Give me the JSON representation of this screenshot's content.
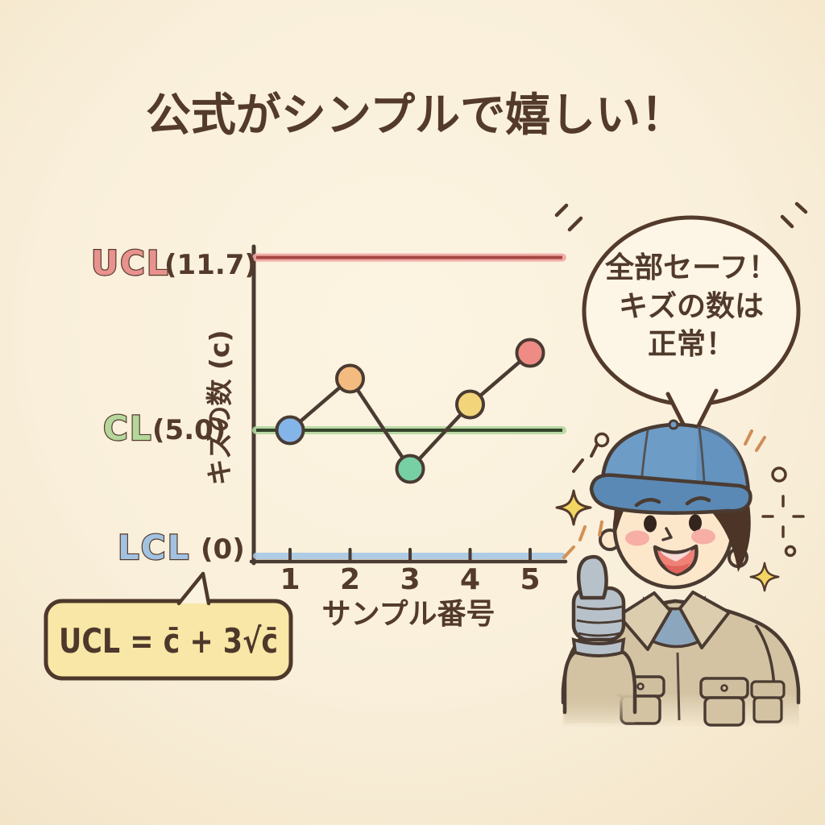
{
  "title": "公式がシンプルで嬉しい！",
  "chart_data": {
    "type": "line",
    "x": [
      1,
      2,
      3,
      4,
      5
    ],
    "x_labels": [
      "1",
      "2",
      "3",
      "4",
      "5"
    ],
    "values": [
      5,
      7,
      3.5,
      6,
      8
    ],
    "xlabel": "サンプル番号",
    "ylabel": "キズの数 (c)",
    "ylim": [
      0,
      13
    ],
    "grid": false,
    "legend": "none",
    "limits": {
      "ucl": {
        "label": "UCL",
        "value_text": "(11.7)",
        "value": 11.7,
        "label_fill": "#e8928e",
        "line_core": "#a64643",
        "line_halo": "#efa7a1"
      },
      "cl": {
        "label": "CL",
        "value_text": "(5.0)",
        "value": 5.0,
        "label_fill": "#b5d79c",
        "line_core": "#35452b",
        "line_halo": "#b3d79f"
      },
      "lcl": {
        "label": "LCL",
        "value_text": "(0)",
        "value": 0,
        "label_fill": "#a3c2e2",
        "line_core": "#4a3b32",
        "line_halo": "#a9c7e5"
      }
    },
    "point_colors": [
      "#84b5e8",
      "#f4bb81",
      "#77d0a4",
      "#f2d57a",
      "#ee8b85"
    ]
  },
  "formula": {
    "text": "UCL = c̄ + 3√c̄",
    "box_fill": "#f8e7a6"
  },
  "speech_bubble": {
    "lines": [
      "全部セーフ！",
      "キズの数は",
      "正常！"
    ]
  },
  "character": {
    "type": "worker-thumbs-up",
    "cap_color": "#6d9cc6",
    "shirt_color": "#d3c3a3",
    "glove_color": "#b7c1ca",
    "skin_color": "#fde7cb"
  },
  "colors": {
    "background": "#f9efda",
    "ink": "#533a2b",
    "axis_ink": "#4a3b32",
    "sparkle": "#f3d563"
  }
}
